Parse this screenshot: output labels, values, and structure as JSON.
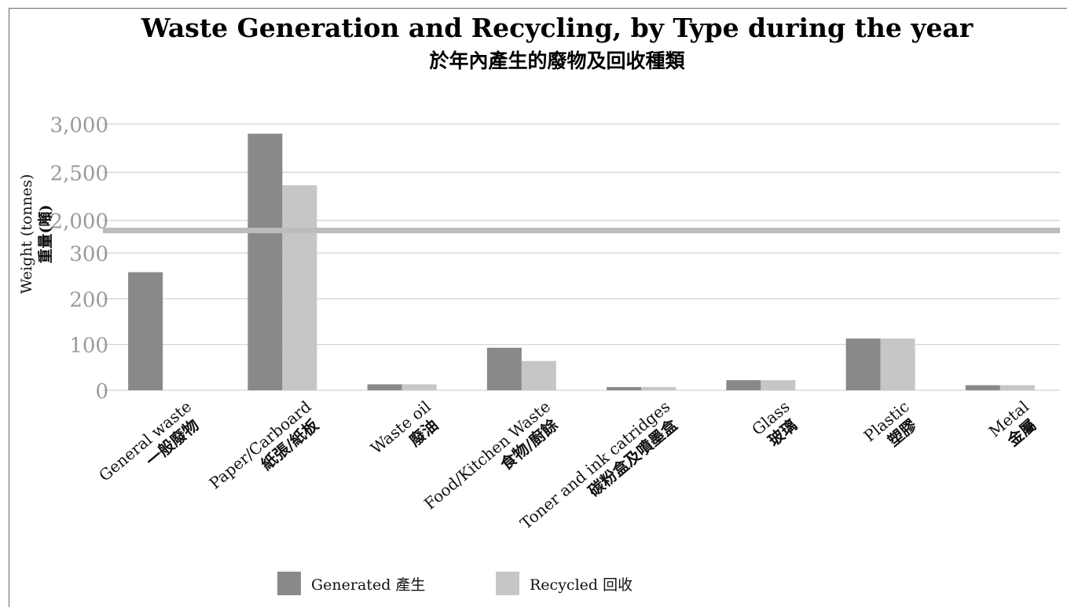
{
  "chart_data": {
    "type": "bar",
    "title": "Waste Generation and Recycling, by Type during the year",
    "subtitle": "於年內產生的廢物及回收種類",
    "ylabel": [
      "Weight (tonnes)",
      "重量(噸)"
    ],
    "xlabel": "",
    "yaxis_break": true,
    "ylim_lower": [
      0,
      350
    ],
    "ylim_upper": [
      1900,
      3000
    ],
    "ticks_lower": [
      "0",
      "100",
      "200",
      "300"
    ],
    "ticks_upper": [
      "2,000",
      "2,500",
      "3,000"
    ],
    "tick_values_lower": [
      0,
      100,
      200,
      300
    ],
    "tick_values_upper": [
      2000,
      2500,
      3000
    ],
    "grid": true,
    "legend_position": "bottom",
    "categories": [
      [
        "General waste",
        "一般廢物"
      ],
      [
        "Paper/Carboard",
        "紙張/紙板"
      ],
      [
        "Waste oil",
        "廢油"
      ],
      [
        "Food/Kitchen Waste",
        "食物/廚餘"
      ],
      [
        "Toner and ink catridges",
        "碳粉盒及噴墨盒"
      ],
      [
        "Glass",
        "玻璃"
      ],
      [
        "Plastic",
        "塑膠"
      ],
      [
        "Metal",
        "金屬"
      ]
    ],
    "series": [
      {
        "name": "Generated 產生",
        "color": "#898989",
        "values": [
          258,
          2900,
          13,
          93,
          7,
          22,
          113,
          11
        ]
      },
      {
        "name": "Recycled 回收",
        "color": "#c6c6c6",
        "values": [
          0,
          2365,
          13,
          64,
          7,
          22,
          113,
          11
        ]
      }
    ]
  }
}
